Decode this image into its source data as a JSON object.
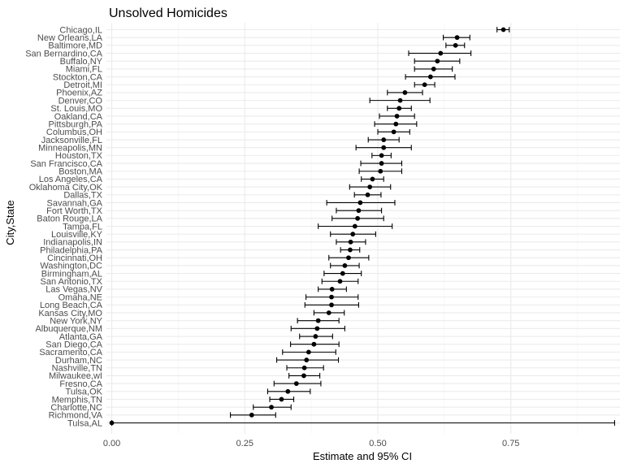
{
  "chart_data": {
    "type": "scatter",
    "title": "Unsolved Homicides",
    "xlabel": "Estimate and 95% CI",
    "ylabel": "City,State",
    "xlim": [
      -0.01,
      0.955
    ],
    "x_ticks": [
      0.0,
      0.25,
      0.5,
      0.75
    ],
    "x_tick_labels": [
      "0.00",
      "0.25",
      "0.50",
      "0.75"
    ],
    "grid": true,
    "error_bars": true,
    "colors": {
      "point": "#000000",
      "grid_major": "#ebebeb",
      "grid_minor": "#f4f4f4",
      "text": "#4d4d4d"
    },
    "points": [
      {
        "city": "Chicago,IL",
        "estimate": 0.736,
        "low": 0.724,
        "high": 0.747
      },
      {
        "city": "New Orleans,LA",
        "estimate": 0.649,
        "low": 0.623,
        "high": 0.673
      },
      {
        "city": "Baltimore,MD",
        "estimate": 0.646,
        "low": 0.628,
        "high": 0.663
      },
      {
        "city": "San Bernardino,CA",
        "estimate": 0.618,
        "low": 0.558,
        "high": 0.675
      },
      {
        "city": "Buffalo,NY",
        "estimate": 0.612,
        "low": 0.569,
        "high": 0.654
      },
      {
        "city": "Miami,FL",
        "estimate": 0.605,
        "low": 0.569,
        "high": 0.64
      },
      {
        "city": "Stockton,CA",
        "estimate": 0.599,
        "low": 0.552,
        "high": 0.645
      },
      {
        "city": "Detroit,MI",
        "estimate": 0.588,
        "low": 0.569,
        "high": 0.607
      },
      {
        "city": "Phoenix,AZ",
        "estimate": 0.551,
        "low": 0.518,
        "high": 0.584
      },
      {
        "city": "Denver,CO",
        "estimate": 0.542,
        "low": 0.485,
        "high": 0.598
      },
      {
        "city": "St. Louis,MO",
        "estimate": 0.54,
        "low": 0.518,
        "high": 0.563
      },
      {
        "city": "Oakland,CA",
        "estimate": 0.536,
        "low": 0.503,
        "high": 0.569
      },
      {
        "city": "Pittsburgh,PA",
        "estimate": 0.534,
        "low": 0.494,
        "high": 0.573
      },
      {
        "city": "Columbus,OH",
        "estimate": 0.53,
        "low": 0.5,
        "high": 0.56
      },
      {
        "city": "Jacksonville,FL",
        "estimate": 0.511,
        "low": 0.482,
        "high": 0.54
      },
      {
        "city": "Minneapolis,MN",
        "estimate": 0.511,
        "low": 0.459,
        "high": 0.563
      },
      {
        "city": "Houston,TX",
        "estimate": 0.507,
        "low": 0.489,
        "high": 0.525
      },
      {
        "city": "San Francisco,CA",
        "estimate": 0.507,
        "low": 0.468,
        "high": 0.545
      },
      {
        "city": "Boston,MA",
        "estimate": 0.505,
        "low": 0.465,
        "high": 0.545
      },
      {
        "city": "Los Angeles,CA",
        "estimate": 0.49,
        "low": 0.469,
        "high": 0.511
      },
      {
        "city": "Oklahoma City,OK",
        "estimate": 0.485,
        "low": 0.447,
        "high": 0.524
      },
      {
        "city": "Dallas,TX",
        "estimate": 0.481,
        "low": 0.456,
        "high": 0.506
      },
      {
        "city": "Savannah,GA",
        "estimate": 0.467,
        "low": 0.404,
        "high": 0.532
      },
      {
        "city": "Fort Worth,TX",
        "estimate": 0.464,
        "low": 0.422,
        "high": 0.507
      },
      {
        "city": "Baton Rouge,LA",
        "estimate": 0.462,
        "low": 0.414,
        "high": 0.511
      },
      {
        "city": "Tampa,FL",
        "estimate": 0.457,
        "low": 0.388,
        "high": 0.527
      },
      {
        "city": "Louisville,KY",
        "estimate": 0.453,
        "low": 0.411,
        "high": 0.496
      },
      {
        "city": "Indianapolis,IN",
        "estimate": 0.449,
        "low": 0.422,
        "high": 0.477
      },
      {
        "city": "Philadelphia,PA",
        "estimate": 0.448,
        "low": 0.43,
        "high": 0.466
      },
      {
        "city": "Cincinnati,OH",
        "estimate": 0.445,
        "low": 0.408,
        "high": 0.483
      },
      {
        "city": "Washington,DC",
        "estimate": 0.438,
        "low": 0.411,
        "high": 0.465
      },
      {
        "city": "Birmingham,AL",
        "estimate": 0.434,
        "low": 0.399,
        "high": 0.469
      },
      {
        "city": "San Antonio,TX",
        "estimate": 0.429,
        "low": 0.395,
        "high": 0.463
      },
      {
        "city": "Las Vegas,NV",
        "estimate": 0.414,
        "low": 0.388,
        "high": 0.441
      },
      {
        "city": "Omaha,NE",
        "estimate": 0.413,
        "low": 0.365,
        "high": 0.463
      },
      {
        "city": "Long Beach,CA",
        "estimate": 0.413,
        "low": 0.363,
        "high": 0.464
      },
      {
        "city": "Kansas City,MO",
        "estimate": 0.408,
        "low": 0.38,
        "high": 0.437
      },
      {
        "city": "New York,NY",
        "estimate": 0.388,
        "low": 0.349,
        "high": 0.427
      },
      {
        "city": "Albuquerque,NM",
        "estimate": 0.386,
        "low": 0.337,
        "high": 0.438
      },
      {
        "city": "Atlanta,GA",
        "estimate": 0.383,
        "low": 0.353,
        "high": 0.415
      },
      {
        "city": "San Diego,CA",
        "estimate": 0.38,
        "low": 0.336,
        "high": 0.427
      },
      {
        "city": "Sacramento,CA",
        "estimate": 0.37,
        "low": 0.321,
        "high": 0.421
      },
      {
        "city": "Durham,NC",
        "estimate": 0.366,
        "low": 0.31,
        "high": 0.426
      },
      {
        "city": "Nashville,TN",
        "estimate": 0.362,
        "low": 0.329,
        "high": 0.398
      },
      {
        "city": "Milwaukee,wI",
        "estimate": 0.361,
        "low": 0.333,
        "high": 0.391
      },
      {
        "city": "Fresno,CA",
        "estimate": 0.347,
        "low": 0.305,
        "high": 0.393
      },
      {
        "city": "Tulsa,OK",
        "estimate": 0.331,
        "low": 0.293,
        "high": 0.373
      },
      {
        "city": "Memphis,TN",
        "estimate": 0.319,
        "low": 0.297,
        "high": 0.342
      },
      {
        "city": "Charlotte,NC",
        "estimate": 0.3,
        "low": 0.266,
        "high": 0.337
      },
      {
        "city": "Richmond,VA",
        "estimate": 0.263,
        "low": 0.223,
        "high": 0.308
      },
      {
        "city": "Tulsa,AL",
        "estimate": 0.0,
        "low": 0.0,
        "high": 0.945
      }
    ]
  }
}
